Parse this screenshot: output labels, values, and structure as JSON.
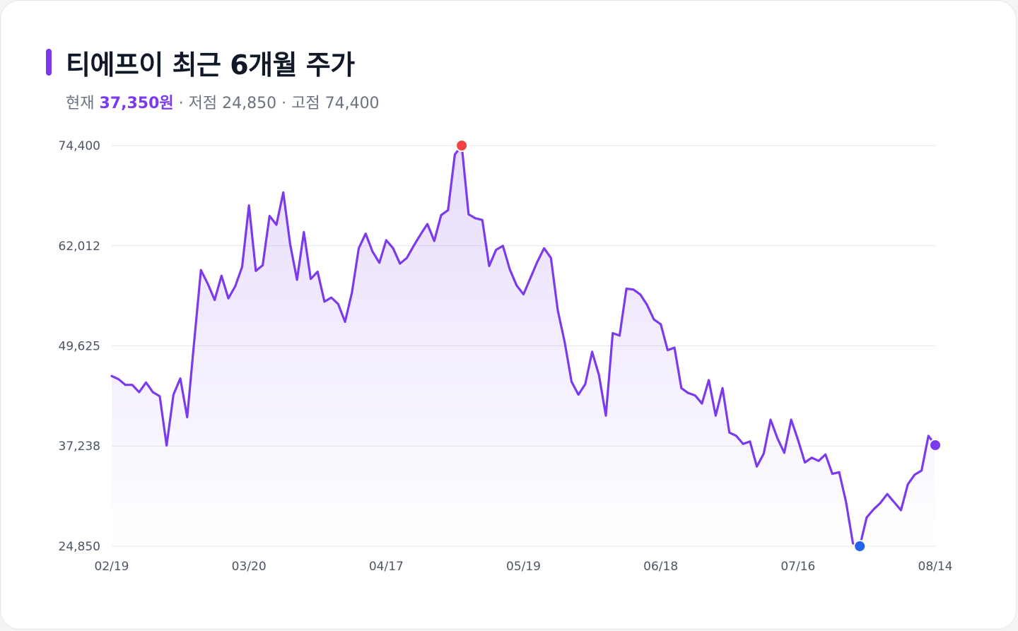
{
  "header": {
    "title": "티에프이 최근 6개월 주가",
    "current_label": "현재",
    "current_value": "37,350원",
    "sep1": "·",
    "low_label": "저점",
    "low_value": "24,850",
    "sep2": "·",
    "high_label": "고점",
    "high_value": "74,400"
  },
  "colors": {
    "line": "#7c3aed",
    "area_top": "#7c3aed",
    "max_marker": "#ef4444",
    "min_marker": "#2563eb",
    "last_marker": "#7c3aed",
    "grid": "#e5e7eb"
  },
  "chart_data": {
    "type": "area",
    "title": "티에프이 최근 6개월 주가",
    "xlabel": "",
    "ylabel": "",
    "ylim": [
      24850,
      74400
    ],
    "yticks": [
      74400,
      62012,
      49625,
      37238,
      24850
    ],
    "ytick_labels": [
      "74,400",
      "62,012",
      "49,625",
      "37,238",
      "24,850"
    ],
    "x_tick_labels": [
      "02/19",
      "03/20",
      "04/17",
      "05/19",
      "06/18",
      "07/16",
      "08/14"
    ],
    "x_tick_index": [
      0,
      20,
      40,
      60,
      80,
      100,
      120
    ],
    "grid": true,
    "markers": {
      "max": {
        "index": 51,
        "value": 74400
      },
      "min": {
        "index": 109,
        "value": 24850
      },
      "last": {
        "index": 120,
        "value": 37350
      }
    },
    "series": [
      {
        "values": [
          45900,
          45500,
          44800,
          44800,
          43900,
          45100,
          43900,
          43400,
          37300,
          43600,
          45600,
          40800,
          50000,
          59000,
          57300,
          55300,
          58300,
          55500,
          57000,
          59400,
          67000,
          58900,
          59600,
          65700,
          64600,
          68600,
          62200,
          57800,
          63700,
          57900,
          58800,
          55100,
          55600,
          54800,
          52600,
          56200,
          61700,
          63500,
          61300,
          59900,
          62700,
          61700,
          59800,
          60500,
          62000,
          63400,
          64700,
          62600,
          65800,
          66400,
          73300,
          74400,
          65900,
          65400,
          65200,
          59500,
          61500,
          62000,
          59100,
          57100,
          56000,
          58000,
          60000,
          61700,
          60500,
          54000,
          50100,
          45200,
          43600,
          44900,
          48900,
          46000,
          41000,
          51200,
          50900,
          56700,
          56600,
          56000,
          54700,
          52900,
          52300,
          49100,
          49400,
          44400,
          43800,
          43500,
          42500,
          45400,
          41000,
          44400,
          38900,
          38500,
          37500,
          37800,
          34700,
          36300,
          40500,
          38200,
          36400,
          40500,
          38000,
          35200,
          35800,
          35400,
          36200,
          33800,
          34000,
          30300,
          25200,
          24850,
          28400,
          29400,
          30200,
          31300,
          30300,
          29300,
          32500,
          33700,
          34200,
          38500,
          37350
        ]
      }
    ]
  }
}
